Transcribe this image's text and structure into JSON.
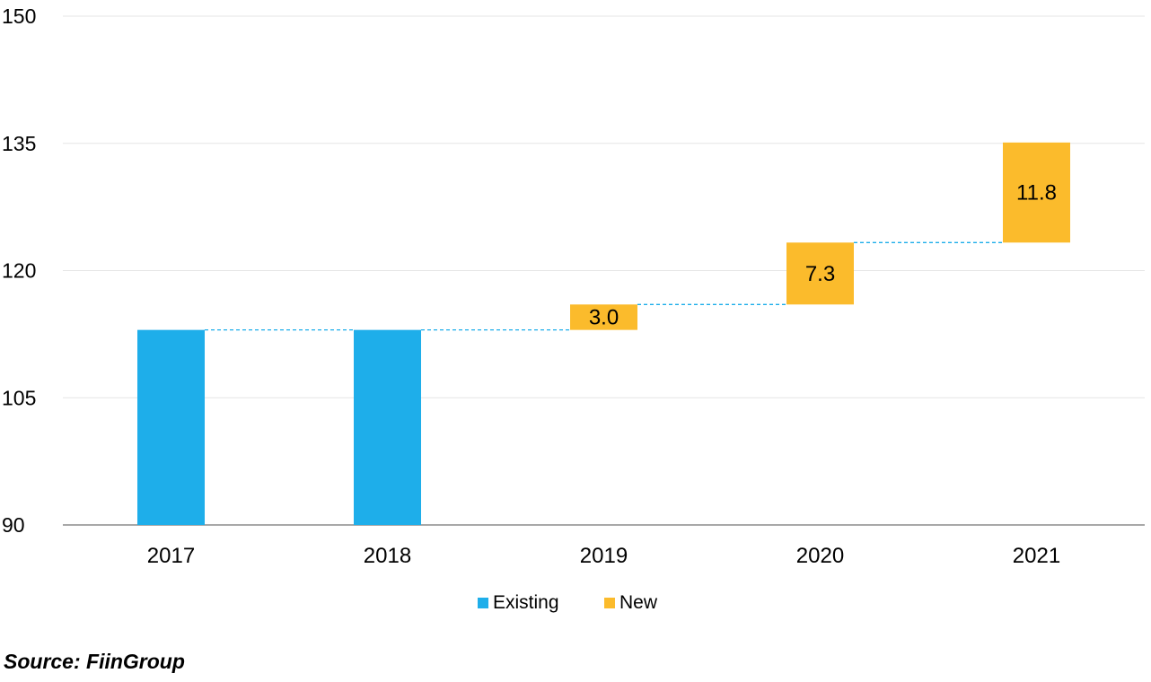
{
  "chart_data": {
    "type": "bar",
    "subtype": "waterfall",
    "title": "",
    "xlabel": "",
    "ylabel": "",
    "categories": [
      "2017",
      "2018",
      "2019",
      "2020",
      "2021"
    ],
    "ylim": [
      90,
      150
    ],
    "yticks": [
      "90",
      "105",
      "120",
      "135",
      "150"
    ],
    "grid": true,
    "legend_position": "bottom",
    "series": [
      {
        "name": "Existing",
        "color": "#1EAEEA",
        "values": [
          113,
          113,
          null,
          null,
          null
        ]
      },
      {
        "name": "New",
        "color": "#FBBB2C",
        "base": [
          null,
          null,
          113,
          116,
          123.3
        ],
        "values": [
          null,
          null,
          3.0,
          7.3,
          11.8
        ],
        "labels": [
          "",
          "",
          "3.0",
          "7.3",
          "11.8"
        ]
      }
    ],
    "connector_color": "#1EAEEA"
  },
  "legend": {
    "items": [
      {
        "label": "Existing",
        "color": "#1EAEEA"
      },
      {
        "label": "New",
        "color": "#FBBB2C"
      }
    ]
  },
  "source": "Source: FiinGroup"
}
